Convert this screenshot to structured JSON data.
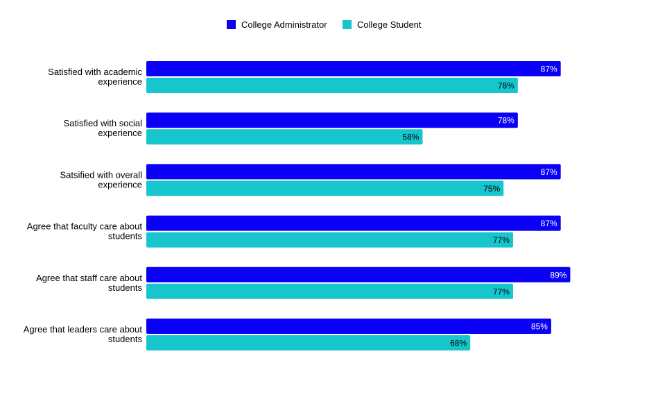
{
  "chart_data": {
    "type": "bar",
    "orientation": "horizontal",
    "title": "",
    "xlabel": "",
    "ylabel": "",
    "xlim": [
      0,
      100
    ],
    "grid": false,
    "legend_position": "top-center",
    "value_format": "percent",
    "categories": [
      [
        "Satisfied with academic",
        "experience"
      ],
      [
        "Satisfied with social",
        "experience"
      ],
      [
        "Satsified with overall",
        "experience"
      ],
      [
        "Agree that faculty care about",
        "students"
      ],
      [
        "Agree that staff care about",
        "students"
      ],
      [
        "Agree that leaders care about",
        "students"
      ]
    ],
    "series": [
      {
        "name": "College Administrator",
        "color": "#0a00f5",
        "label_color": "#ffffff",
        "values": [
          87,
          78,
          87,
          87,
          89,
          85
        ],
        "labels": [
          "87%",
          "78%",
          "87%",
          "87%",
          "89%",
          "85%"
        ]
      },
      {
        "name": "College Student",
        "color": "#17c6cc",
        "label_color": "#000000",
        "values": [
          78,
          58,
          75,
          77,
          77,
          68
        ],
        "labels": [
          "78%",
          "58%",
          "75%",
          "77%",
          "77%",
          "68%"
        ]
      }
    ]
  }
}
